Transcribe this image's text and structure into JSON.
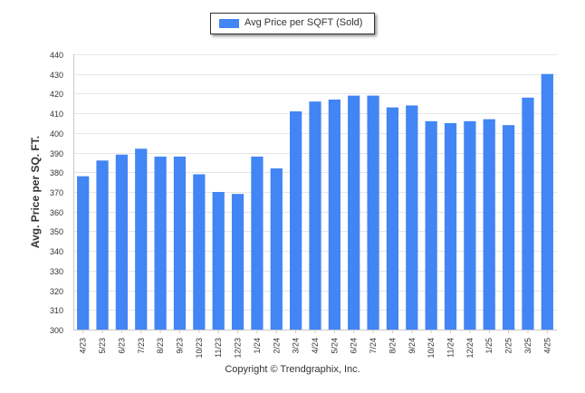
{
  "chart_data": {
    "type": "bar",
    "xlabel": "",
    "ylabel": "Avg. Price per SQ. FT.",
    "ylim": [
      300,
      440
    ],
    "yticks": [
      300,
      310,
      320,
      330,
      340,
      350,
      360,
      370,
      380,
      390,
      400,
      410,
      420,
      430,
      440
    ],
    "grid": true,
    "legend_position": "top-center",
    "categories": [
      "4/23",
      "5/23",
      "6/23",
      "7/23",
      "8/23",
      "9/23",
      "10/23",
      "11/23",
      "12/23",
      "1/24",
      "2/24",
      "3/24",
      "4/24",
      "5/24",
      "6/24",
      "7/24",
      "8/24",
      "9/24",
      "10/24",
      "11/24",
      "12/24",
      "1/25",
      "2/25",
      "3/25",
      "4/25"
    ],
    "series": [
      {
        "name": "Avg Price per SQFT (Sold)",
        "color": "#4285f4",
        "values": [
          378,
          386,
          389,
          392,
          388,
          388,
          379,
          370,
          369,
          388,
          382,
          411,
          416,
          417,
          419,
          419,
          413,
          414,
          406,
          405,
          406,
          407,
          404,
          418,
          430
        ]
      }
    ]
  },
  "footer": {
    "copyright": "Copyright © Trendgraphix, Inc."
  }
}
